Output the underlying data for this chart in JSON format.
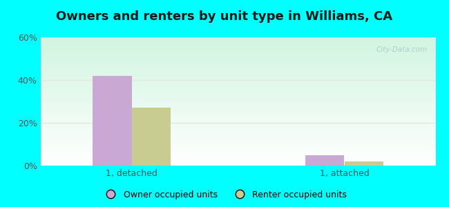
{
  "title": "Owners and renters by unit type in Williams, CA",
  "categories": [
    "1, detached",
    "1, attached"
  ],
  "owner_values": [
    42,
    5
  ],
  "renter_values": [
    27,
    2
  ],
  "owner_color": "#c9a8d4",
  "renter_color": "#c8cc90",
  "ylim": [
    0,
    60
  ],
  "yticks": [
    0,
    20,
    40,
    60
  ],
  "ytick_labels": [
    "0%",
    "20%",
    "40%",
    "60%"
  ],
  "grad_color_bottom": "#ffffff",
  "grad_color_top_left": "#d4f0e0",
  "grad_color_top_right": "#e8f8e8",
  "outer_bg": "#00ffff",
  "watermark": "City-Data.com",
  "legend_owner": "Owner occupied units",
  "legend_renter": "Renter occupied units",
  "bar_width": 0.32,
  "group_positions": [
    0.75,
    2.5
  ],
  "xlim": [
    0,
    3.25
  ],
  "title_fontsize": 13,
  "axis_label_fontsize": 9,
  "legend_fontsize": 9,
  "tick_color": "#555555",
  "grid_color": "#e0e8e0",
  "watermark_color": "#aac8c8"
}
